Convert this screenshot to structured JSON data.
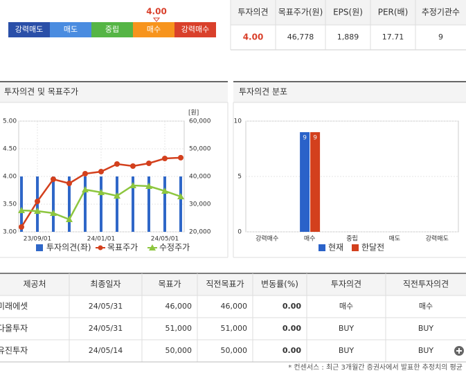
{
  "rating_scale": {
    "levels": [
      "강력매도",
      "매도",
      "중립",
      "매수",
      "강력매수"
    ],
    "colors": [
      "#2a4fa8",
      "#4a8ce0",
      "#55b545",
      "#f7941d",
      "#d9402b"
    ],
    "value": 4,
    "value_label": "4.00"
  },
  "summary_table": {
    "headers": [
      "투자의견",
      "목표주가(원)",
      "EPS(원)",
      "PER(배)",
      "추정기관수"
    ],
    "row": [
      "4.00",
      "46,778",
      "1,889",
      "17.71",
      "9"
    ]
  },
  "chart_data": [
    {
      "type": "combo",
      "title": "투자의견 및 목표주가",
      "unit_label": "[원]",
      "categories": [
        null,
        "23/09/01",
        null,
        null,
        null,
        "24/01/01",
        null,
        null,
        null,
        "24/05/01",
        null
      ],
      "series": [
        {
          "name": "투자의견(좌)",
          "type": "bar",
          "color": "#2f67c8",
          "values": [
            4,
            4,
            4,
            4,
            4,
            4,
            4,
            4,
            4,
            4,
            4
          ]
        },
        {
          "name": "목표주가",
          "type": "line",
          "marker": "circle",
          "axis": "y2",
          "color": "#d3401d",
          "values": [
            21750,
            31000,
            39000,
            37500,
            41000,
            41750,
            44500,
            43750,
            44750,
            46500,
            46778
          ]
        },
        {
          "name": "수정주가",
          "type": "line",
          "marker": "triangle",
          "axis": "y2",
          "color": "#8dc63f",
          "values": [
            27750,
            27500,
            26750,
            24500,
            35250,
            34250,
            33000,
            36750,
            36500,
            34750,
            32750
          ]
        }
      ],
      "ylim": [
        3,
        5
      ],
      "yticks": [
        {
          "value": 3,
          "label": "3.00"
        },
        {
          "value": 3.5,
          "label": "3.50"
        },
        {
          "value": 4,
          "label": "4.00"
        },
        {
          "value": 4.5,
          "label": "4.50"
        },
        {
          "value": 5,
          "label": "5.00"
        }
      ],
      "y2lim": [
        20000,
        60000
      ],
      "y2ticks": [
        {
          "value": 20000,
          "label": "20,000"
        },
        {
          "value": 30000,
          "label": "30,000"
        },
        {
          "value": 40000,
          "label": "40,000"
        },
        {
          "value": 50000,
          "label": "50,000"
        },
        {
          "value": 60000,
          "label": "60,000"
        }
      ],
      "grid": true
    },
    {
      "type": "bar",
      "title": "투자의견 분포",
      "categories": [
        "강력매수",
        "매수",
        "중립",
        "매도",
        "강력매도"
      ],
      "series": [
        {
          "name": "현재",
          "color": "#2a62c9",
          "values": [
            0,
            9,
            0,
            0,
            0
          ]
        },
        {
          "name": "한달전",
          "color": "#d3401d",
          "values": [
            0,
            9,
            0,
            0,
            0
          ]
        }
      ],
      "ylim": [
        0,
        10
      ],
      "yticks": [
        0,
        5,
        10
      ],
      "grid": true
    }
  ],
  "consensus_table": {
    "headers": [
      "제공처",
      "최종일자",
      "목표가",
      "직전목표가",
      "변동률(%)",
      "투자의견",
      "직전투자의견"
    ],
    "rows": [
      [
        "미래에셋",
        "24/05/31",
        "46,000",
        "46,000",
        "0.00",
        "매수",
        "매수"
      ],
      [
        "다올투자",
        "24/05/31",
        "51,000",
        "51,000",
        "0.00",
        "BUY",
        "BUY"
      ],
      [
        "유진투자",
        "24/05/14",
        "50,000",
        "50,000",
        "0.00",
        "BUY",
        "BUY"
      ]
    ]
  },
  "footnote": "* 컨센서스 : 최근 3개월간 증권사에서 발표한 추정치의 평균"
}
